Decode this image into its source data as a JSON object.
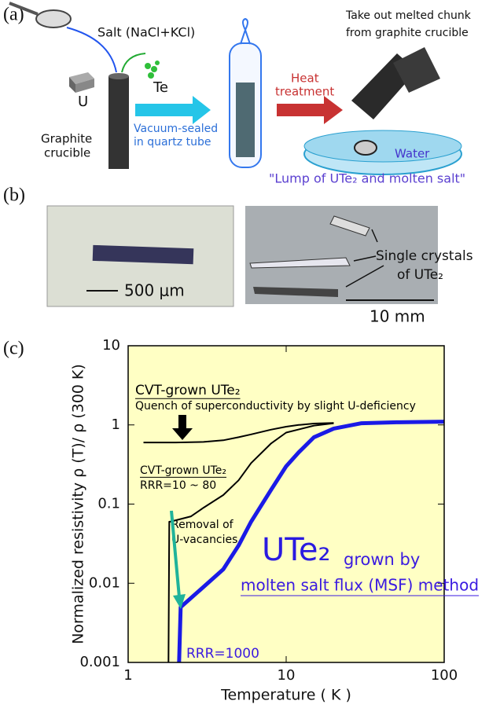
{
  "panel_a": {
    "label": "(a)",
    "salt": "Salt (NaCl+KCl)",
    "u": "U",
    "te": "Te",
    "crucible": [
      "Graphite",
      "crucible"
    ],
    "sealed": [
      "Vacuum-sealed",
      "in quartz tube"
    ],
    "heat": [
      "Heat",
      "treatment"
    ],
    "take_out": [
      "Take out melted chunk",
      "from graphite crucible"
    ],
    "water": "Water",
    "lump": "\"Lump of UTe₂ and molten salt\""
  },
  "panel_b": {
    "label": "(b)",
    "scale_left": "500 μm",
    "crystals": [
      "Single crystals",
      "of UTe₂"
    ],
    "scale_right": "10 mm"
  },
  "panel_c": {
    "label": "(c)"
  },
  "chart_data": {
    "type": "line",
    "xlabel": "Temperature ( K )",
    "ylabel": "Normalized resistivity  ρ (T)/ ρ (300 K)",
    "xscale": "log",
    "yscale": "log",
    "xlim": [
      1,
      100
    ],
    "ylim": [
      0.001,
      10
    ],
    "xticks": [
      1,
      10,
      100
    ],
    "yticks": [
      0.001,
      0.01,
      0.1,
      1,
      10
    ],
    "grid": false,
    "background": "#ffffc4",
    "series": [
      {
        "color": "#000000",
        "x": [
          1.25,
          2,
          3,
          4,
          5,
          6,
          8,
          10,
          12,
          15,
          20
        ],
        "values": [
          0.6,
          0.6,
          0.61,
          0.64,
          0.7,
          0.76,
          0.87,
          0.95,
          1.0,
          1.04,
          1.06
        ]
      },
      {
        "color": "#000000",
        "x": [
          1.8,
          1.82,
          1.85,
          2.5,
          3,
          4,
          5,
          6,
          8,
          10,
          15,
          20
        ],
        "values": [
          0.001,
          0.06,
          0.06,
          0.07,
          0.09,
          0.13,
          0.2,
          0.33,
          0.58,
          0.8,
          0.98,
          1.05
        ]
      },
      {
        "color": "#1a1ae6",
        "x": [
          2.1,
          2.15,
          3,
          4,
          5,
          6,
          8,
          10,
          12,
          15,
          20,
          30,
          50,
          100
        ],
        "values": [
          0.001,
          0.005,
          0.009,
          0.015,
          0.03,
          0.06,
          0.15,
          0.3,
          0.45,
          0.7,
          0.9,
          1.05,
          1.08,
          1.1
        ]
      }
    ],
    "annotations": [
      "CVT-grown UTe₂",
      "Quench of superconductivity by slight U-deficiency",
      "CVT-grown UTe₂",
      "RRR=10 ~ 80",
      "Removal of",
      "U-vacancies",
      "UTe₂",
      "grown by",
      "molten salt flux (MSF) method",
      "RRR=1000"
    ]
  }
}
